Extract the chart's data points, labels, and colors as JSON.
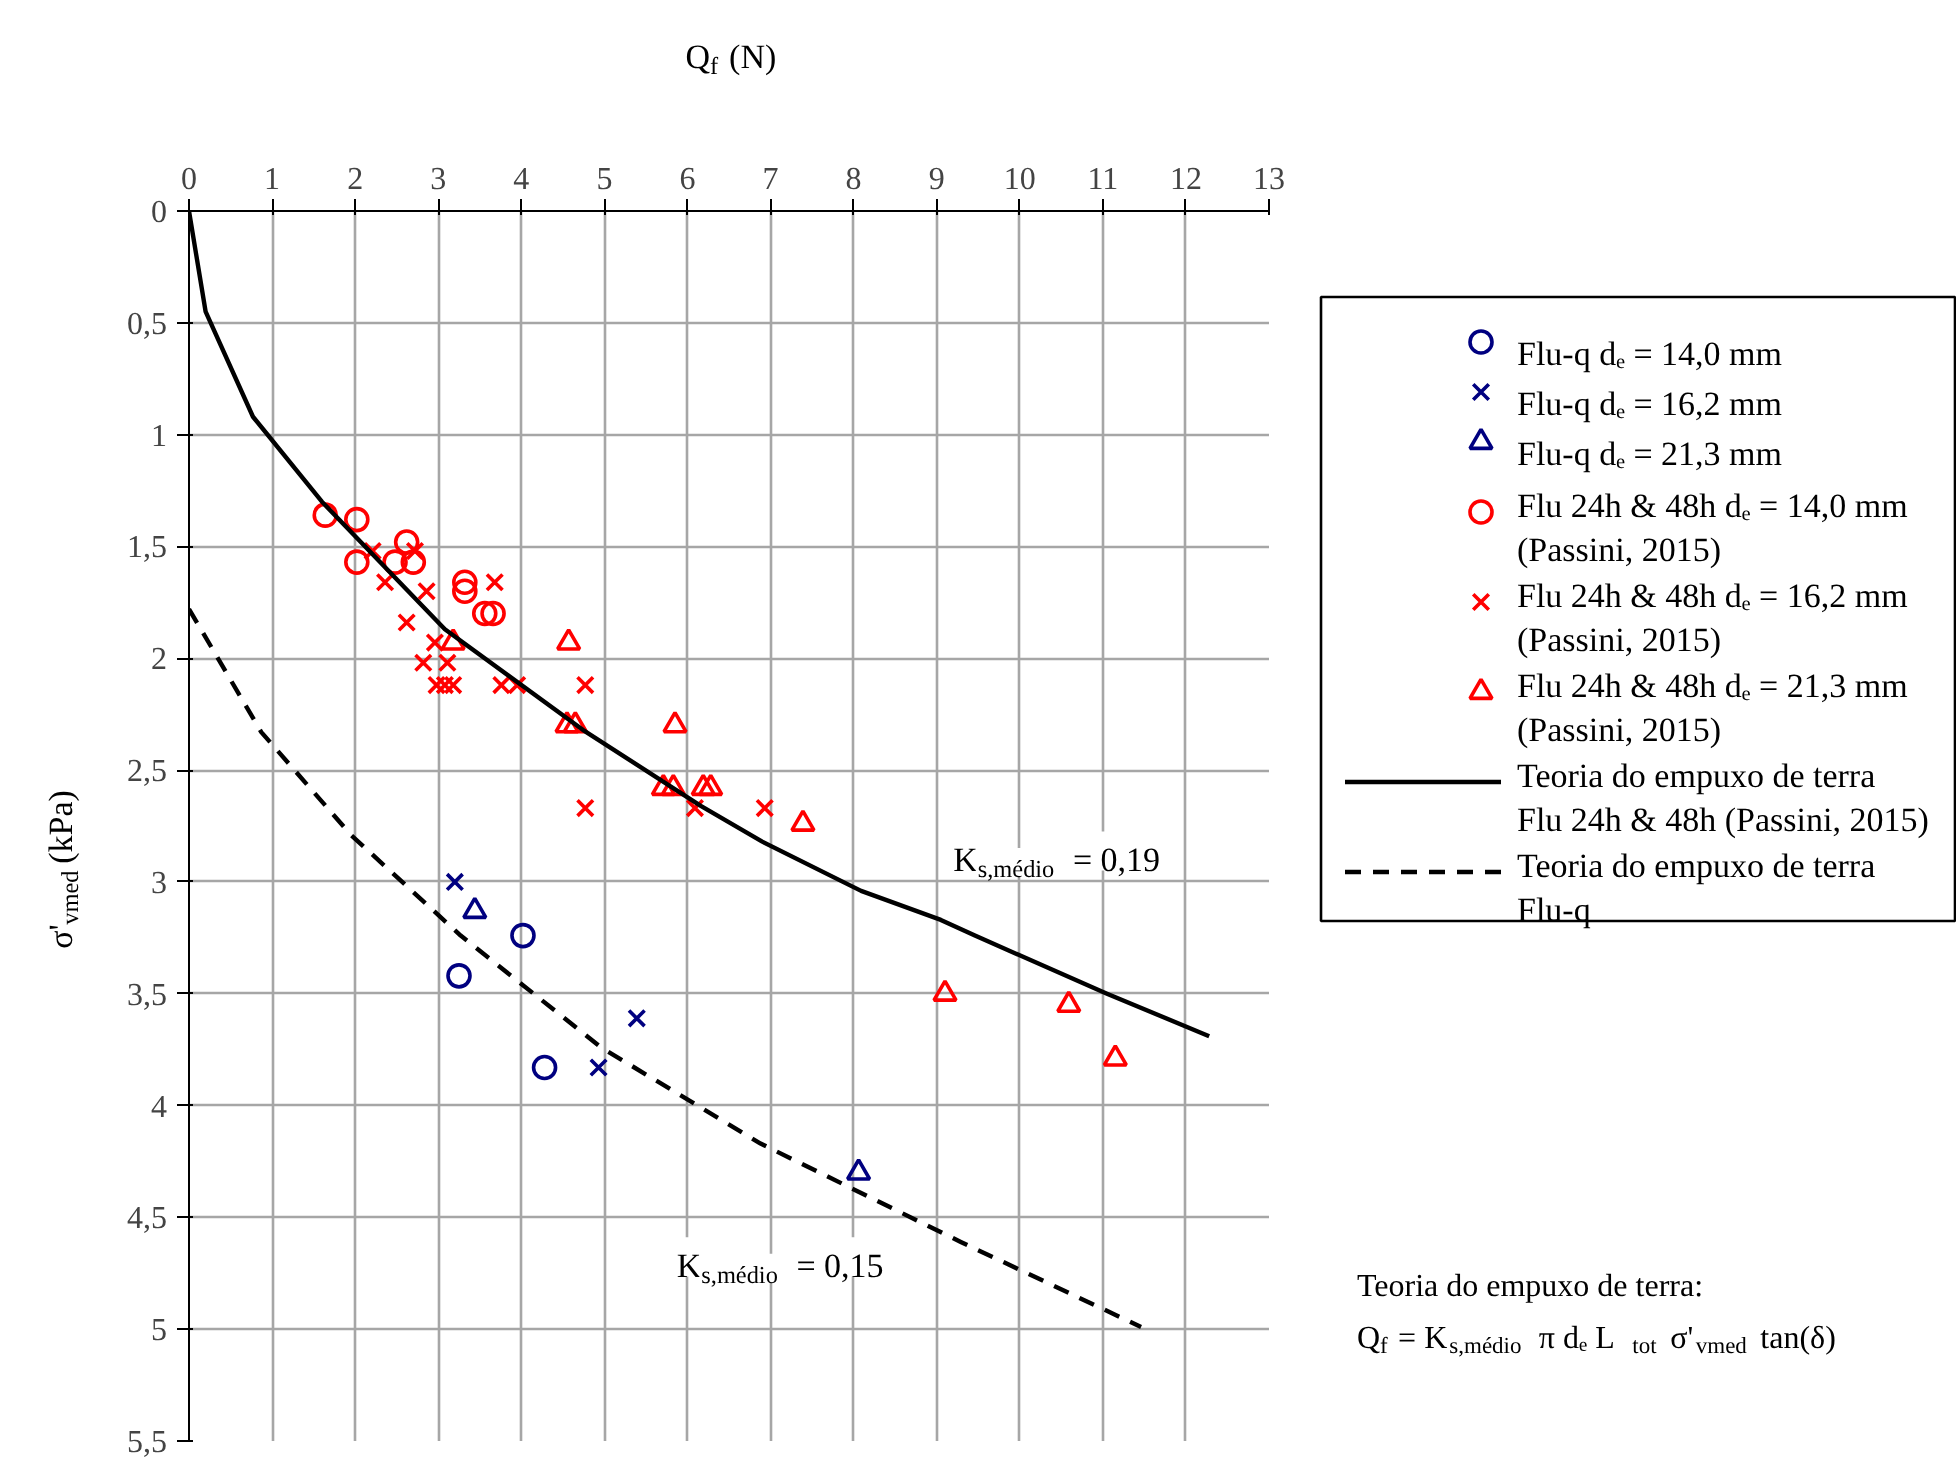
{
  "chart_data": {
    "type": "scatter",
    "xlabel": "Q$_{f}$ (N)",
    "ylabel": "σ'$_{vmed}$ (kPa)",
    "xlim": [
      0,
      13
    ],
    "ylim": [
      5.5,
      0
    ],
    "xticks": [
      0,
      1,
      2,
      3,
      4,
      5,
      6,
      7,
      8,
      9,
      10,
      11,
      12,
      13
    ],
    "yticks": [
      0,
      {
        "value": 0.5,
        "label": "0,5"
      },
      1,
      {
        "value": 1.5,
        "label": "1,5"
      },
      2,
      {
        "value": 2.5,
        "label": "2,5"
      },
      3,
      {
        "value": 3.5,
        "label": "3,5"
      },
      4,
      {
        "value": 4.5,
        "label": "4,5"
      },
      5,
      {
        "value": 5.5,
        "label": "5,5"
      }
    ],
    "grid": true,
    "legend": "right",
    "series": [
      {
        "name": "Flu-q dₑ = 14,0 mm",
        "marker": "circle",
        "color": "#000080",
        "x": [
          4.02,
          3.25,
          4.28
        ],
        "values": [
          3.24,
          3.42,
          3.83
        ]
      },
      {
        "name": "Flu-q dₑ = 16,2 mm",
        "marker": "cross",
        "color": "#000080",
        "x": [
          3.2,
          5.39,
          4.93
        ],
        "values": [
          3.0,
          3.61,
          3.83
        ]
      },
      {
        "name": "Flu-q dₑ = 21,3 mm",
        "marker": "triangle",
        "color": "#000080",
        "x": [
          3.44,
          8.06
        ],
        "values": [
          3.13,
          4.3
        ]
      },
      {
        "name": "Flu 24h & 48h dₑ = 14,0 mm\n(Passini, 2015)",
        "marker": "circle",
        "color": "#ff0000",
        "x": [
          1.64,
          2.02,
          2.02,
          2.48,
          2.62,
          2.7,
          3.32,
          3.32,
          3.56,
          3.66
        ],
        "values": [
          1.36,
          1.38,
          1.57,
          1.57,
          1.48,
          1.57,
          1.66,
          1.7,
          1.8,
          1.8
        ]
      },
      {
        "name": "Flu 24h & 48h  dₑ = 16,2 mm\n(Passini, 2015)",
        "marker": "cross",
        "color": "#ff0000",
        "x": [
          2.21,
          2.72,
          2.36,
          3.68,
          2.86,
          2.62,
          2.96,
          3.11,
          2.82,
          2.98,
          3.08,
          3.18,
          3.76,
          3.95,
          4.77,
          4.77,
          6.09,
          6.93
        ],
        "values": [
          1.52,
          1.52,
          1.66,
          1.66,
          1.7,
          1.84,
          1.93,
          2.02,
          2.02,
          2.12,
          2.12,
          2.12,
          2.12,
          2.12,
          2.12,
          2.67,
          2.67,
          2.67
        ]
      },
      {
        "name": "Flu 24h & 48h  dₑ = 21,3 mm\n(Passini, 2015)",
        "marker": "triangle",
        "color": "#ff0000",
        "x": [
          3.18,
          4.57,
          4.55,
          4.65,
          5.85,
          5.71,
          5.83,
          6.19,
          6.28,
          7.39,
          9.1,
          10.59,
          11.15
        ],
        "values": [
          1.93,
          1.93,
          2.3,
          2.3,
          2.3,
          2.58,
          2.58,
          2.58,
          2.58,
          2.74,
          3.5,
          3.55,
          3.79
        ]
      },
      {
        "name": "Teoria do empuxo de terra\nFlu 24h & 48h (Passini, 2015)",
        "type": "line",
        "line_style": "solid",
        "color": "#000000",
        "x": [
          0,
          0.2,
          0.77,
          1.6,
          3.08,
          4.74,
          6.16,
          6.9,
          8.09,
          9.05,
          9.46,
          11.05,
          12.28
        ],
        "values": [
          0,
          0.45,
          0.92,
          1.3,
          1.87,
          2.32,
          2.66,
          2.82,
          3.04,
          3.17,
          3.24,
          3.5,
          3.69
        ]
      },
      {
        "name": "Teoria do empuxo de terra\nFlu-q",
        "type": "line",
        "line_style": "dashed",
        "color": "#000000",
        "x": [
          0,
          0.87,
          1.95,
          3.27,
          4.96,
          6.88,
          9.29,
          11.46
        ],
        "values": [
          1.78,
          2.33,
          2.79,
          3.24,
          3.74,
          4.17,
          4.61,
          4.99
        ]
      }
    ],
    "annotations": [
      {
        "text": "K$_{s,médio}$ = 0,19",
        "x": 9.2,
        "y": 3.19
      },
      {
        "text": "K$_{s,médio}$ = 0,15",
        "x": 8.4,
        "y": 4.45
      },
      "Teoria do empuxo de terra:",
      "Q$_{f}$ = K$_{s,médio}$ π dₑ L$_{tot}$ σ'$_{vmed}$ tan(δ)"
    ]
  }
}
